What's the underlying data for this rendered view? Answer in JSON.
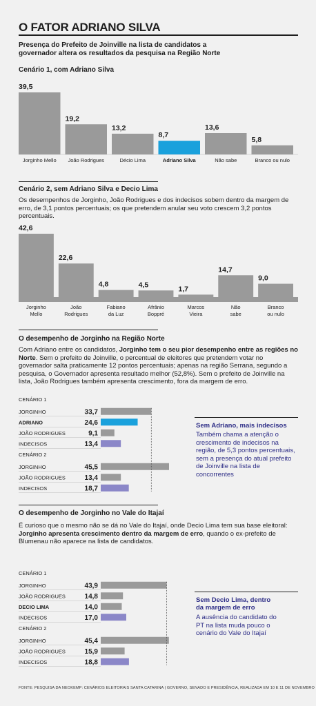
{
  "title": "O FATOR ADRIANO SILVA",
  "subtitle": "Presença do Prefeito de Joinville na lista de candidatos a governador altera os resultados da pesquisa na Região Norte",
  "colors": {
    "gray": "#9a9a9a",
    "blue": "#1aa1dc",
    "purple": "#8b87c8",
    "text": "#1f1f1f",
    "navy": "#2e2e87"
  },
  "chart_data": [
    {
      "type": "bar",
      "title": "Cenário 1, com Adriano Silva",
      "categories": [
        "Jorginho Mello",
        "João Rodrigues",
        "Décio Lima",
        "Adriano Silva",
        "Não sabe",
        "Branco ou nulo"
      ],
      "values": [
        39.5,
        19.2,
        13.2,
        8.7,
        13.6,
        5.8
      ],
      "value_labels": [
        "39,5",
        "19,2",
        "13,2",
        "8,7",
        "13,6",
        "5,8"
      ],
      "highlight": "Adriano Silva"
    },
    {
      "type": "bar",
      "title": "Cenário 2, sem Adriano Silva e Decio Lima",
      "categories": [
        "Jorginho Mello",
        "João Rodrigues",
        "Fabiano da Luz",
        "Afrânio Boppré",
        "Marcos Vieira",
        "Não sabe",
        "Branco ou nulo"
      ],
      "values": [
        42.6,
        22.6,
        4.8,
        4.5,
        1.7,
        14.7,
        9.0
      ],
      "value_labels": [
        "42,6",
        "22,6",
        "4,8",
        "4,5",
        "1,7",
        "14,7",
        "9,0"
      ]
    },
    {
      "type": "bar",
      "orientation": "horizontal",
      "title": "O desempenho de Jorginho na Região Norte",
      "groups": [
        {
          "name": "CENÁRIO 1",
          "rows": [
            {
              "label": "JORGINHO",
              "value": 33.7,
              "value_label": "33,7",
              "color": "gray"
            },
            {
              "label": "ADRIANO",
              "value": 24.6,
              "value_label": "24,6",
              "color": "blue",
              "bold": true
            },
            {
              "label": "JOÃO RODRIGUES",
              "value": 9.1,
              "value_label": "9,1",
              "color": "gray"
            },
            {
              "label": "INDECISOS",
              "value": 13.4,
              "value_label": "13,4",
              "color": "purple"
            }
          ]
        },
        {
          "name": "CENÁRIO 2",
          "rows": [
            {
              "label": "JORGINHO",
              "value": 45.5,
              "value_label": "45,5",
              "color": "gray"
            },
            {
              "label": "JOÃO RODRIGUES",
              "value": 13.4,
              "value_label": "13,4",
              "color": "gray"
            },
            {
              "label": "INDECISOS",
              "value": 18.7,
              "value_label": "18,7",
              "color": "purple"
            }
          ]
        }
      ]
    },
    {
      "type": "bar",
      "orientation": "horizontal",
      "title": "O desempenho de Jorginho no Vale do Itajaí",
      "groups": [
        {
          "name": "CENÁRIO 1",
          "rows": [
            {
              "label": "JORGINHO",
              "value": 43.9,
              "value_label": "43,9",
              "color": "gray"
            },
            {
              "label": "JOÃO RODRIGUES",
              "value": 14.8,
              "value_label": "14,8",
              "color": "gray"
            },
            {
              "label": "DECIO LIMA",
              "value": 14.0,
              "value_label": "14,0",
              "color": "gray",
              "bold": true
            },
            {
              "label": "INDECISOS",
              "value": 17.0,
              "value_label": "17,0",
              "color": "purple"
            }
          ]
        },
        {
          "name": "CENÁRIO 2",
          "rows": [
            {
              "label": "JORGINHO",
              "value": 45.4,
              "value_label": "45,4",
              "color": "gray"
            },
            {
              "label": "JOÃO RODRIGUES",
              "value": 15.9,
              "value_label": "15,9",
              "color": "gray"
            },
            {
              "label": "INDECISOS",
              "value": 18.8,
              "value_label": "18,8",
              "color": "purple"
            }
          ]
        }
      ]
    }
  ],
  "scenario2": {
    "text": "Os desempenhos de Jorginho, João Rodrigues e dos indecisos sobem dentro da margem de erro, de 3,1 pontos percentuais; os que pretendem anular seu voto crescem 3,2 pontos percentuais."
  },
  "norte": {
    "p1": "Com Adriano entre os candidatos, ",
    "p1_bold": "Jorginho tem o seu pior desempenho entre as regiões no Norte",
    "p2": ". Sem o prefeito de Joinville, o percentual de eleitores que pretendem votar no governador salta praticamente 12 pontos percentuais; apenas na região Serrana, segundo a pesquisa, o Governador apresenta resultado melhor (52,8%). Sem o prefeito de Joinville na lista, João Rodrigues também apresenta crescimento, fora da margem de erro.",
    "side_title": "Sem Adriano, mais indecisos",
    "side_text": "Também chama a atenção o crescimento de indecisos na região, de 5,3 pontos percentuais, sem a presença do atual prefeito de Joinville na lista de concorrentes"
  },
  "vale": {
    "p1": "É curioso que o mesmo não se dá no Vale do Itajaí, onde Decio Lima tem sua base eleitoral: ",
    "p1_bold": "Jorginho apresenta crescimento dentro da margem de erro",
    "p2": ", quando o ex-prefeito de Blumenau não aparece na lista de candidatos.",
    "side_title": "Sem Decio Lima, dentro da margem de erro",
    "side_text": "A ausência do candidato do PT na lista muda pouco o cenário do Vale do Itajaí"
  },
  "footer": "FONTE: PESQUISA DA NEOKEMP: CENÁRIOS ELEITORAIS SANTA CATARINA | GOVERNO, SENADO E PRESIDÊNCIA, REALIZADA EM 10 E 11 DE NOVEMBRO DE 2025"
}
